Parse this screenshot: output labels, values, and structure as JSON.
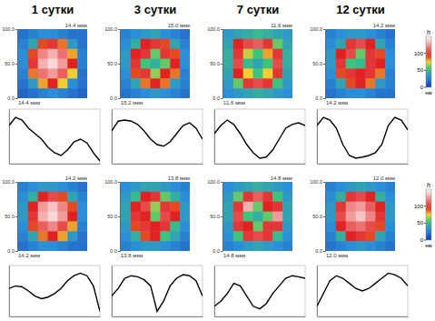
{
  "chart_data": [
    {
      "type": "heatmap",
      "title": "1 сутки",
      "xlabel": "14.4 мкм",
      "ylabel": "14.4 мкм",
      "ylim": [
        0,
        100
      ],
      "yticks": [
        {
          "value": 0,
          "label": "0.0"
        },
        {
          "value": 50,
          "label": "50.0"
        },
        {
          "value": 100,
          "label": "100.0"
        }
      ],
      "zlim": [
        0,
        150
      ],
      "z": [
        [
          20,
          25,
          30,
          30,
          25,
          20,
          20
        ],
        [
          25,
          40,
          90,
          100,
          85,
          35,
          20
        ],
        [
          30,
          90,
          120,
          130,
          115,
          80,
          25
        ],
        [
          30,
          100,
          130,
          140,
          125,
          95,
          25
        ],
        [
          25,
          85,
          115,
          125,
          110,
          75,
          20
        ],
        [
          20,
          35,
          80,
          95,
          75,
          30,
          20
        ],
        [
          15,
          20,
          25,
          30,
          25,
          20,
          15
        ]
      ]
    },
    {
      "type": "heatmap",
      "title": "3 сутки",
      "xlabel": "15.2 мкм",
      "ylabel": "15.0 мкм",
      "ylim": [
        0,
        100
      ],
      "yticks": [
        {
          "value": 0,
          "label": "0.0"
        },
        {
          "value": 50,
          "label": "50.0"
        },
        {
          "value": 100,
          "label": "100.0"
        }
      ],
      "zlim": [
        0,
        150
      ],
      "z": [
        [
          25,
          30,
          35,
          40,
          30,
          25,
          20
        ],
        [
          30,
          45,
          95,
          100,
          90,
          40,
          25
        ],
        [
          35,
          95,
          100,
          60,
          100,
          90,
          30
        ],
        [
          35,
          100,
          55,
          45,
          60,
          95,
          30
        ],
        [
          30,
          90,
          100,
          65,
          95,
          85,
          25
        ],
        [
          25,
          40,
          85,
          95,
          85,
          35,
          25
        ],
        [
          20,
          25,
          30,
          35,
          30,
          25,
          20
        ]
      ]
    },
    {
      "type": "heatmap",
      "title": "7 сутки",
      "xlabel": "11.6 мкм",
      "ylabel": "11.6 мкм",
      "ylim": [
        0,
        100
      ],
      "yticks": [
        {
          "value": 0,
          "label": "0.0"
        },
        {
          "value": 50,
          "label": "50.0"
        },
        {
          "value": 100,
          "label": "100.0"
        }
      ],
      "zlim": [
        0,
        150
      ],
      "z": [
        [
          35,
          40,
          45,
          50,
          45,
          40,
          35
        ],
        [
          40,
          95,
          105,
          110,
          100,
          60,
          40
        ],
        [
          45,
          100,
          70,
          55,
          80,
          100,
          45
        ],
        [
          45,
          105,
          50,
          40,
          55,
          105,
          45
        ],
        [
          40,
          95,
          75,
          55,
          75,
          100,
          40
        ],
        [
          35,
          60,
          100,
          105,
          100,
          55,
          35
        ],
        [
          30,
          35,
          40,
          45,
          40,
          35,
          30
        ]
      ]
    },
    {
      "type": "heatmap",
      "title": "12 сутки",
      "xlabel": "14.2 мкм",
      "ylabel": "14.2 мкм",
      "ylim": [
        0,
        100
      ],
      "yticks": [
        {
          "value": 0,
          "label": "0.0"
        },
        {
          "value": 50,
          "label": "50.0"
        },
        {
          "value": 100,
          "label": "100.0"
        }
      ],
      "zlim": [
        0,
        150
      ],
      "colorbar_ticks": [
        0,
        50,
        100
      ],
      "colorbar_title": "h",
      "colorbar_unit": "нм",
      "z": [
        [
          25,
          30,
          35,
          35,
          30,
          25,
          20
        ],
        [
          30,
          40,
          100,
          105,
          95,
          40,
          25
        ],
        [
          35,
          95,
          105,
          60,
          100,
          90,
          30
        ],
        [
          35,
          100,
          55,
          50,
          100,
          95,
          30
        ],
        [
          30,
          90,
          100,
          95,
          100,
          85,
          25
        ],
        [
          25,
          40,
          90,
          95,
          85,
          35,
          25
        ],
        [
          20,
          25,
          30,
          30,
          25,
          20,
          20
        ]
      ]
    },
    {
      "type": "line",
      "x": [
        0,
        1,
        2,
        3,
        4,
        5,
        6,
        7,
        8,
        9,
        10,
        11,
        12,
        13,
        14
      ],
      "values": [
        70,
        85,
        80,
        65,
        55,
        45,
        30,
        20,
        15,
        25,
        40,
        45,
        38,
        20,
        5
      ],
      "xlim": [
        0,
        14
      ],
      "ylim": [
        0,
        100
      ],
      "color": "#000000",
      "tick_labels": false
    },
    {
      "type": "line",
      "x": [
        0,
        1,
        2,
        3,
        4,
        5,
        6,
        7,
        8,
        9,
        10,
        11,
        12,
        13,
        14
      ],
      "values": [
        60,
        78,
        80,
        78,
        72,
        60,
        45,
        35,
        32,
        40,
        55,
        70,
        75,
        65,
        45
      ],
      "xlim": [
        0,
        14
      ],
      "ylim": [
        0,
        100
      ],
      "color": "#000000",
      "tick_labels": false
    },
    {
      "type": "line",
      "x": [
        0,
        1,
        2,
        3,
        4,
        5,
        6,
        7,
        8,
        9,
        10,
        11,
        12,
        13,
        14
      ],
      "values": [
        55,
        70,
        80,
        72,
        55,
        35,
        20,
        10,
        12,
        25,
        45,
        65,
        72,
        75,
        70
      ],
      "xlim": [
        0,
        14
      ],
      "ylim": [
        0,
        100
      ],
      "color": "#000000",
      "tick_labels": false
    },
    {
      "type": "line",
      "x": [
        0,
        1,
        2,
        3,
        4,
        5,
        6,
        7,
        8,
        9,
        10,
        11,
        12,
        13,
        14
      ],
      "values": [
        70,
        85,
        80,
        65,
        35,
        15,
        10,
        12,
        15,
        20,
        35,
        70,
        85,
        80,
        62
      ],
      "xlim": [
        0,
        14
      ],
      "ylim": [
        0,
        100
      ],
      "color": "#000000",
      "tick_labels": false
    },
    {
      "type": "heatmap",
      "xlabel": "14.2 мкм",
      "ylabel": "14.2 мкм",
      "ylim": [
        0,
        100
      ],
      "yticks": [
        {
          "value": 0,
          "label": "0.0"
        },
        {
          "value": 50,
          "label": "50.0"
        },
        {
          "value": 100,
          "label": "100.0"
        }
      ],
      "zlim": [
        0,
        150
      ],
      "z": [
        [
          25,
          30,
          35,
          35,
          30,
          25,
          20
        ],
        [
          30,
          45,
          95,
          105,
          90,
          40,
          25
        ],
        [
          35,
          95,
          125,
          135,
          120,
          90,
          30
        ],
        [
          35,
          100,
          130,
          140,
          125,
          95,
          30
        ],
        [
          30,
          90,
          110,
          120,
          105,
          80,
          25
        ],
        [
          25,
          40,
          85,
          95,
          80,
          35,
          20
        ],
        [
          20,
          25,
          30,
          30,
          25,
          20,
          20
        ]
      ]
    },
    {
      "type": "heatmap",
      "xlabel": "13.8 мкм",
      "ylabel": "13.8 мкм",
      "ylim": [
        0,
        100
      ],
      "yticks": [
        {
          "value": 0,
          "label": "0.0"
        },
        {
          "value": 50,
          "label": "50.0"
        },
        {
          "value": 100,
          "label": "100.0"
        }
      ],
      "zlim": [
        0,
        150
      ],
      "z": [
        [
          30,
          35,
          40,
          40,
          35,
          30,
          25
        ],
        [
          35,
          50,
          95,
          100,
          60,
          45,
          30
        ],
        [
          40,
          95,
          105,
          65,
          100,
          90,
          35
        ],
        [
          40,
          100,
          95,
          60,
          105,
          95,
          35
        ],
        [
          35,
          90,
          100,
          95,
          100,
          50,
          30
        ],
        [
          30,
          45,
          90,
          95,
          55,
          40,
          25
        ],
        [
          25,
          30,
          35,
          35,
          30,
          25,
          20
        ]
      ]
    },
    {
      "type": "heatmap",
      "xlabel": "14.8 мкм",
      "ylabel": "14.8 мкм",
      "ylim": [
        0,
        100
      ],
      "yticks": [
        {
          "value": 0,
          "label": "0.0"
        },
        {
          "value": 50,
          "label": "50.0"
        },
        {
          "value": 100,
          "label": "100.0"
        }
      ],
      "zlim": [
        0,
        150
      ],
      "z": [
        [
          30,
          35,
          40,
          45,
          40,
          35,
          30
        ],
        [
          35,
          60,
          100,
          110,
          100,
          55,
          35
        ],
        [
          40,
          100,
          130,
          60,
          95,
          100,
          40
        ],
        [
          40,
          105,
          55,
          45,
          60,
          125,
          40
        ],
        [
          35,
          100,
          95,
          60,
          100,
          100,
          35
        ],
        [
          30,
          55,
          100,
          105,
          100,
          50,
          30
        ],
        [
          25,
          30,
          35,
          40,
          35,
          30,
          25
        ]
      ]
    },
    {
      "type": "heatmap",
      "xlabel": "12.0 мкм",
      "ylabel": "12.0 мкм",
      "ylim": [
        0,
        100
      ],
      "yticks": [
        {
          "value": 0,
          "label": "0.0"
        },
        {
          "value": 50,
          "label": "50.0"
        },
        {
          "value": 100,
          "label": "100.0"
        }
      ],
      "zlim": [
        0,
        150
      ],
      "colorbar_ticks": [
        0,
        50,
        100
      ],
      "colorbar_title": "h",
      "colorbar_unit": "нм",
      "z": [
        [
          25,
          30,
          35,
          40,
          35,
          30,
          25
        ],
        [
          30,
          45,
          100,
          105,
          95,
          45,
          30
        ],
        [
          35,
          100,
          120,
          125,
          110,
          95,
          35
        ],
        [
          35,
          105,
          125,
          135,
          120,
          100,
          35
        ],
        [
          30,
          95,
          110,
          115,
          105,
          90,
          30
        ],
        [
          25,
          45,
          95,
          100,
          90,
          40,
          25
        ],
        [
          20,
          25,
          30,
          35,
          30,
          25,
          20
        ]
      ]
    },
    {
      "type": "line",
      "x": [
        0,
        1,
        2,
        3,
        4,
        5,
        6,
        7,
        8,
        9,
        10,
        11,
        12,
        13,
        14
      ],
      "values": [
        55,
        60,
        58,
        50,
        40,
        35,
        38,
        45,
        55,
        70,
        80,
        85,
        80,
        60,
        10
      ],
      "xlim": [
        0,
        14
      ],
      "ylim": [
        0,
        100
      ],
      "color": "#000000",
      "tick_labels": false
    },
    {
      "type": "line",
      "x": [
        0,
        1,
        2,
        3,
        4,
        5,
        6,
        7,
        8,
        9,
        10,
        11,
        12,
        13,
        14
      ],
      "values": [
        40,
        55,
        75,
        80,
        78,
        72,
        60,
        10,
        30,
        60,
        75,
        82,
        80,
        70,
        40
      ],
      "xlim": [
        0,
        14
      ],
      "ylim": [
        0,
        100
      ],
      "color": "#000000",
      "tick_labels": false
    },
    {
      "type": "line",
      "x": [
        0,
        1,
        2,
        3,
        4,
        5,
        6,
        7,
        8,
        9,
        10,
        11,
        12,
        13,
        14
      ],
      "values": [
        20,
        30,
        45,
        65,
        60,
        40,
        20,
        15,
        25,
        45,
        60,
        75,
        80,
        78,
        75
      ],
      "xlim": [
        0,
        14
      ],
      "ylim": [
        0,
        100
      ],
      "color": "#000000",
      "tick_labels": false
    },
    {
      "type": "line",
      "x": [
        0,
        1,
        2,
        3,
        4,
        5,
        6,
        7,
        8,
        9,
        10,
        11,
        12,
        13,
        14
      ],
      "values": [
        20,
        45,
        70,
        80,
        75,
        65,
        55,
        50,
        55,
        65,
        75,
        85,
        82,
        75,
        60
      ],
      "xlim": [
        0,
        14
      ],
      "ylim": [
        0,
        100
      ],
      "color": "#000000",
      "tick_labels": false
    }
  ]
}
